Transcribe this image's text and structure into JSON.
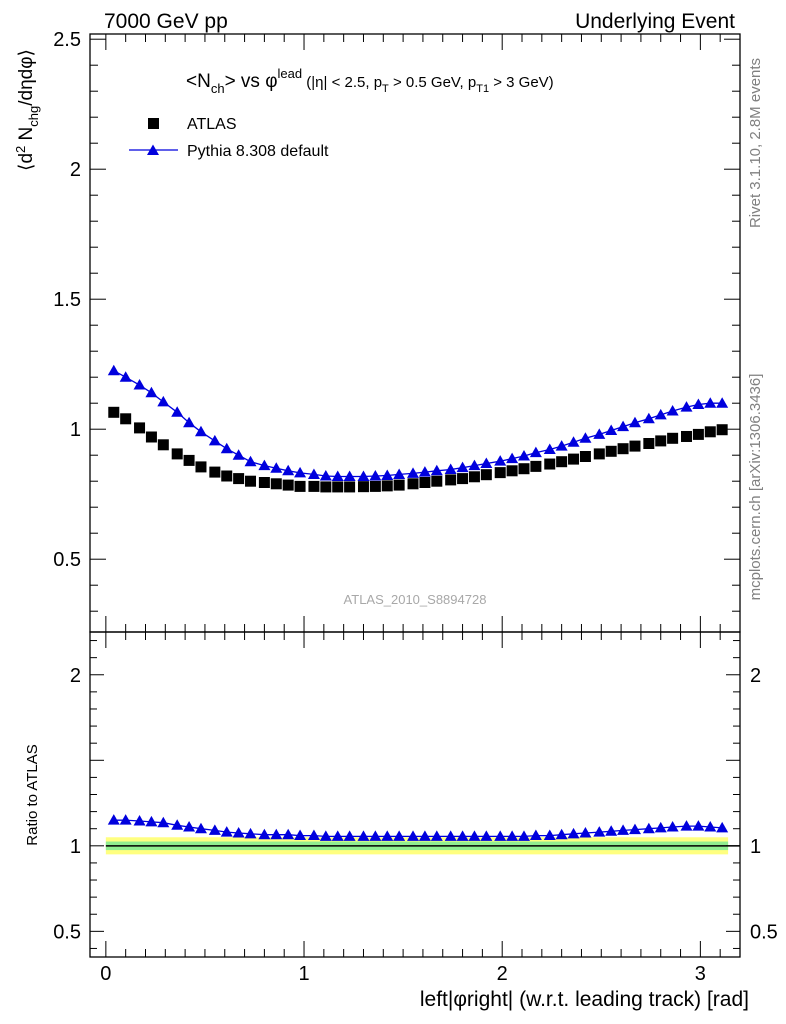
{
  "header": {
    "left": "7000 GeV pp",
    "right": "Underlying Event"
  },
  "side_labels": {
    "rivet": "Rivet 3.1.10,  2.8M events",
    "mcplots": "mcplots.cern.ch [arXiv:1306.3436]"
  },
  "chart_data": [
    {
      "type": "scatter",
      "title": "<N_ch> vs φ^lead (|η| < 2.5, p_T > 0.5 GeV, p_T1 > 3 GeV)",
      "ylabel": "⟨d² N_chg/dηdφ⟩",
      "xlim": [
        -0.08,
        3.2
      ],
      "ylim": [
        0.22,
        2.52
      ],
      "yticks": [
        0.5,
        1,
        1.5,
        2,
        2.5
      ],
      "yticklabels": [
        "0.5",
        "1",
        "1.5",
        "2",
        "2.5"
      ],
      "watermark": "ATLAS_2010_S8894728",
      "legend_position": "top-left",
      "x": [
        0.04,
        0.1,
        0.17,
        0.23,
        0.29,
        0.36,
        0.42,
        0.48,
        0.55,
        0.61,
        0.67,
        0.73,
        0.8,
        0.86,
        0.92,
        0.98,
        1.05,
        1.11,
        1.17,
        1.23,
        1.3,
        1.36,
        1.42,
        1.48,
        1.55,
        1.61,
        1.67,
        1.74,
        1.8,
        1.86,
        1.92,
        1.99,
        2.05,
        2.11,
        2.17,
        2.24,
        2.3,
        2.36,
        2.42,
        2.49,
        2.55,
        2.61,
        2.67,
        2.74,
        2.8,
        2.86,
        2.93,
        2.99,
        3.05,
        3.11
      ],
      "series": [
        {
          "name": "ATLAS",
          "marker": "square",
          "color": "#000000",
          "values": [
            1.065,
            1.04,
            1.005,
            0.97,
            0.94,
            0.905,
            0.88,
            0.855,
            0.835,
            0.82,
            0.81,
            0.8,
            0.795,
            0.79,
            0.785,
            0.78,
            0.78,
            0.778,
            0.778,
            0.778,
            0.779,
            0.78,
            0.782,
            0.785,
            0.79,
            0.795,
            0.8,
            0.805,
            0.81,
            0.817,
            0.825,
            0.833,
            0.84,
            0.848,
            0.857,
            0.866,
            0.875,
            0.885,
            0.895,
            0.905,
            0.915,
            0.925,
            0.935,
            0.945,
            0.955,
            0.965,
            0.972,
            0.98,
            0.99,
            0.998
          ]
        },
        {
          "name": "Pythia 8.308 default",
          "marker": "triangle",
          "color": "#0000dd",
          "values": [
            1.225,
            1.2,
            1.17,
            1.14,
            1.105,
            1.065,
            1.025,
            0.99,
            0.955,
            0.925,
            0.9,
            0.875,
            0.86,
            0.85,
            0.84,
            0.832,
            0.826,
            0.82,
            0.818,
            0.818,
            0.818,
            0.82,
            0.822,
            0.826,
            0.83,
            0.835,
            0.84,
            0.845,
            0.852,
            0.86,
            0.868,
            0.877,
            0.887,
            0.897,
            0.91,
            0.922,
            0.935,
            0.95,
            0.965,
            0.98,
            0.995,
            1.01,
            1.025,
            1.04,
            1.055,
            1.07,
            1.085,
            1.095,
            1.1,
            1.1
          ]
        }
      ]
    },
    {
      "type": "scatter",
      "ylabel": "Ratio to ATLAS",
      "xlabel": "left|φright| (w.r.t. leading track) [rad]",
      "xlim": [
        -0.08,
        3.2
      ],
      "ylim": [
        0.35,
        2.25
      ],
      "yticks": [
        0.5,
        1,
        2
      ],
      "yticklabels": [
        "0.5",
        "1",
        "2"
      ],
      "xticks": [
        0,
        1,
        2,
        3
      ],
      "xticklabels": [
        "0",
        "1",
        "2",
        "3"
      ],
      "bands": [
        {
          "color": "#ffff80",
          "lo": 0.95,
          "hi": 1.05
        },
        {
          "color": "#90ee90",
          "lo": 0.975,
          "hi": 1.025
        }
      ],
      "reference_line": 1,
      "series": [
        {
          "name": "Pythia 8.308 default",
          "marker": "triangle",
          "color": "#0000dd",
          "values": [
            1.15,
            1.15,
            1.145,
            1.14,
            1.135,
            1.12,
            1.11,
            1.1,
            1.09,
            1.08,
            1.075,
            1.07,
            1.065,
            1.065,
            1.065,
            1.06,
            1.06,
            1.055,
            1.055,
            1.055,
            1.055,
            1.055,
            1.055,
            1.055,
            1.055,
            1.055,
            1.055,
            1.055,
            1.055,
            1.055,
            1.055,
            1.055,
            1.055,
            1.055,
            1.06,
            1.06,
            1.065,
            1.07,
            1.075,
            1.08,
            1.085,
            1.09,
            1.095,
            1.1,
            1.105,
            1.11,
            1.115,
            1.115,
            1.11,
            1.105
          ]
        }
      ]
    }
  ]
}
